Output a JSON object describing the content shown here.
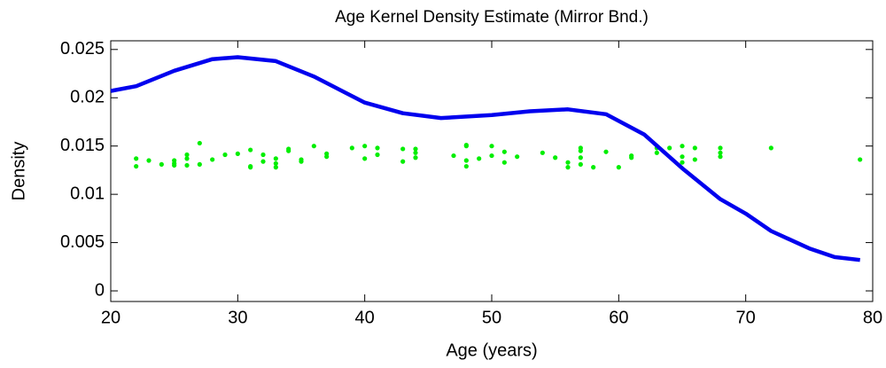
{
  "chart_data": {
    "type": "line",
    "title": "Age Kernel Density Estimate (Mirror Bnd.)",
    "xlabel": "Age (years)",
    "ylabel": "Density",
    "x": [
      20,
      22,
      25,
      28,
      30,
      33,
      36,
      40,
      43,
      46,
      50,
      53,
      56,
      59,
      62,
      65,
      68,
      70,
      72,
      75,
      77,
      79
    ],
    "values": [
      0.0207,
      0.0212,
      0.0228,
      0.024,
      0.0242,
      0.0238,
      0.0222,
      0.0195,
      0.0184,
      0.0179,
      0.0182,
      0.0186,
      0.0188,
      0.0183,
      0.0162,
      0.0127,
      0.0095,
      0.008,
      0.0062,
      0.0044,
      0.0035,
      0.0032
    ],
    "color": "#0000ee",
    "scatter": {
      "color": "#00ee00",
      "x": [
        22,
        22,
        23,
        24,
        25,
        25,
        25,
        26,
        26,
        26,
        27,
        27,
        28,
        29,
        30,
        31,
        31,
        31,
        32,
        32,
        33,
        33,
        33,
        34,
        34,
        35,
        35,
        36,
        37,
        37,
        39,
        40,
        40,
        41,
        41,
        43,
        43,
        44,
        44,
        44,
        47,
        48,
        48,
        48,
        48,
        49,
        50,
        50,
        51,
        51,
        52,
        54,
        55,
        56,
        56,
        57,
        57,
        57,
        57,
        58,
        59,
        60,
        61,
        61,
        63,
        63,
        64,
        65,
        65,
        65,
        66,
        66,
        68,
        68,
        68,
        72,
        79
      ],
      "y": [
        0.0137,
        0.0129,
        0.0135,
        0.0131,
        0.0135,
        0.0132,
        0.013,
        0.0141,
        0.0137,
        0.013,
        0.0153,
        0.0131,
        0.0136,
        0.0141,
        0.0142,
        0.0146,
        0.0129,
        0.0128,
        0.0141,
        0.0134,
        0.0137,
        0.0132,
        0.0128,
        0.0147,
        0.0145,
        0.0136,
        0.0134,
        0.015,
        0.0142,
        0.0139,
        0.0148,
        0.015,
        0.0137,
        0.0148,
        0.0141,
        0.0147,
        0.0134,
        0.0147,
        0.0143,
        0.0138,
        0.014,
        0.0151,
        0.015,
        0.0129,
        0.0135,
        0.0137,
        0.015,
        0.014,
        0.0144,
        0.0133,
        0.0139,
        0.0143,
        0.0138,
        0.0133,
        0.0128,
        0.0148,
        0.0145,
        0.0138,
        0.0131,
        0.0128,
        0.0144,
        0.0128,
        0.014,
        0.0138,
        0.0148,
        0.0143,
        0.0148,
        0.015,
        0.0139,
        0.0133,
        0.0148,
        0.0136,
        0.0148,
        0.0143,
        0.0139,
        0.0148,
        0.0136
      ]
    },
    "xlim": [
      20,
      80
    ],
    "xticks": [
      20,
      30,
      40,
      50,
      60,
      70,
      80
    ],
    "ylim": [
      -0.0011,
      0.0259
    ],
    "yticks": [
      0,
      0.005,
      0.01,
      0.015,
      0.02,
      0.025
    ]
  }
}
